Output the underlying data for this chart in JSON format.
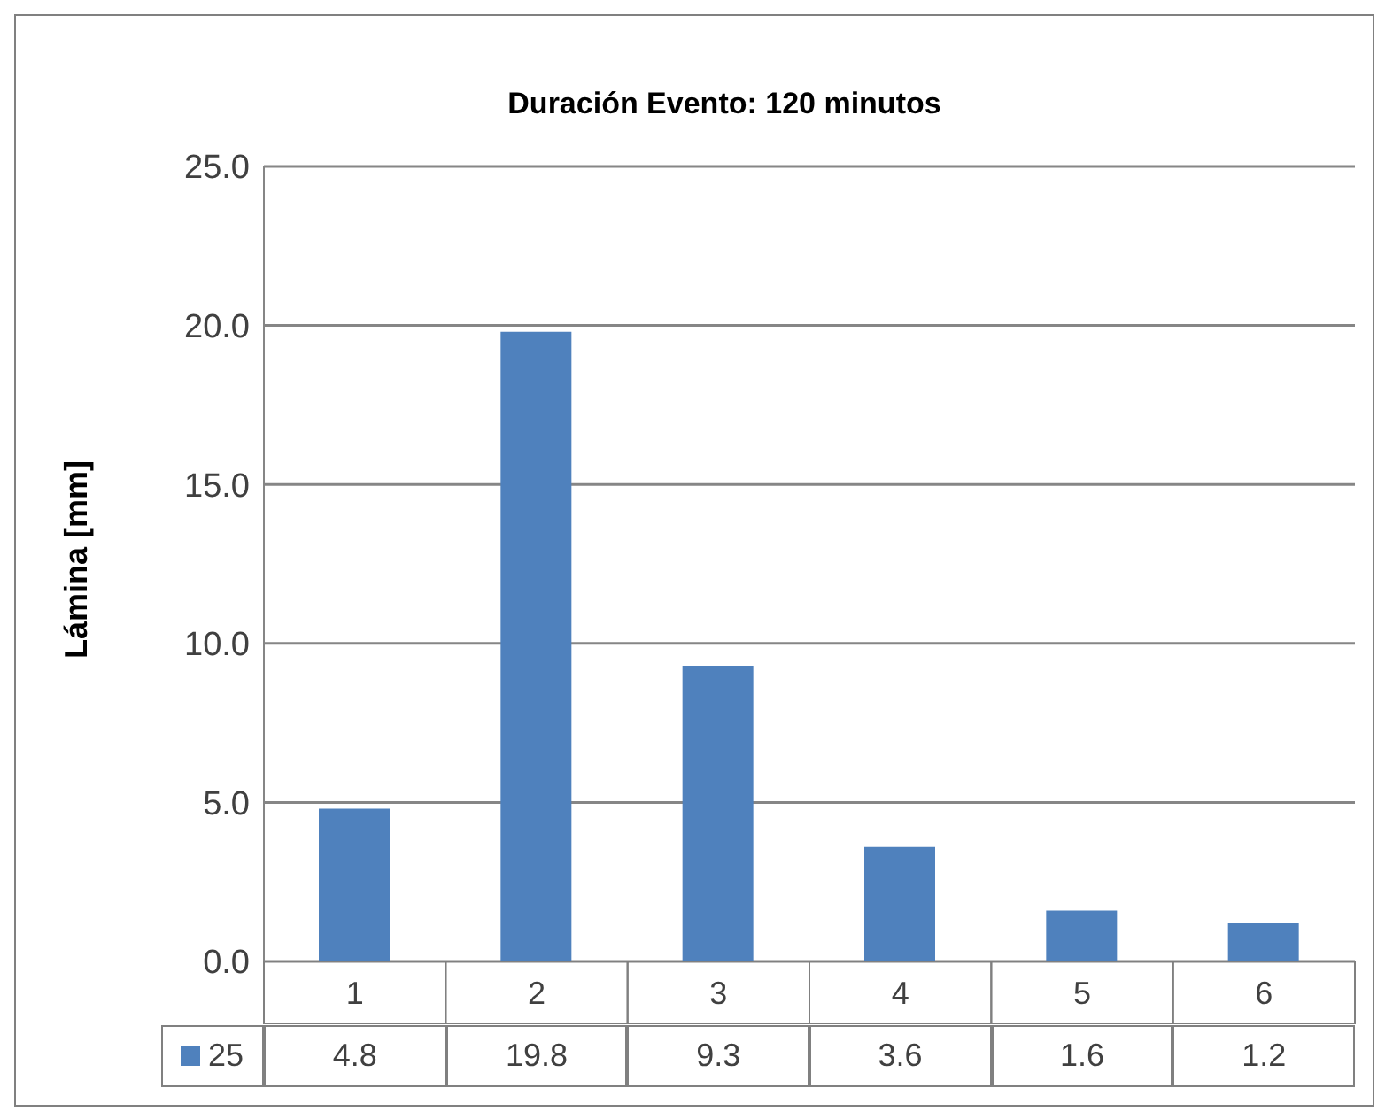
{
  "chart_data": {
    "type": "bar",
    "title": "Duración Evento: 120 minutos",
    "ylabel": "Lámina [mm]",
    "categories": [
      "1",
      "2",
      "3",
      "4",
      "5",
      "6"
    ],
    "series": [
      {
        "name": "25",
        "color": "#4f81bd",
        "values": [
          4.8,
          19.8,
          9.3,
          3.6,
          1.6,
          1.2
        ]
      }
    ],
    "ylim": [
      0,
      25
    ],
    "yticks": [
      {
        "value": 0,
        "label": "0.0"
      },
      {
        "value": 5,
        "label": "5.0"
      },
      {
        "value": 10,
        "label": "10.0"
      },
      {
        "value": 15,
        "label": "15.0"
      },
      {
        "value": 20,
        "label": "20.0"
      },
      {
        "value": 25,
        "label": "25.0"
      }
    ],
    "grid": "y",
    "data_labels": true,
    "legend": "bottom"
  }
}
